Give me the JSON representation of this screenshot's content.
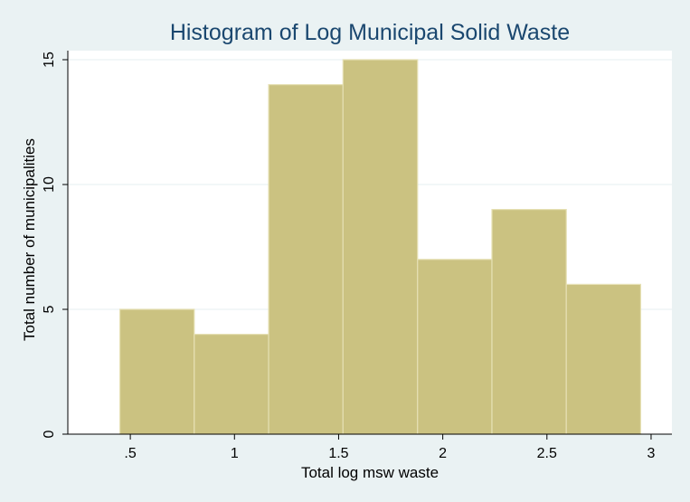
{
  "chart_data": {
    "type": "bar",
    "title": "Histogram of Log Municipal Solid Waste",
    "xlabel": "Total log msw waste",
    "ylabel": "Total number of municipalities",
    "bins": [
      {
        "start": 0.45,
        "end": 0.807,
        "value": 5
      },
      {
        "start": 0.807,
        "end": 1.164,
        "value": 4
      },
      {
        "start": 1.164,
        "end": 1.521,
        "value": 14
      },
      {
        "start": 1.521,
        "end": 1.879,
        "value": 15
      },
      {
        "start": 1.879,
        "end": 2.236,
        "value": 7
      },
      {
        "start": 2.236,
        "end": 2.593,
        "value": 9
      },
      {
        "start": 2.593,
        "end": 2.95,
        "value": 6
      }
    ],
    "xlim": [
      0.2,
      3.1
    ],
    "ylim": [
      0,
      15
    ],
    "xticks": [
      0.5,
      1,
      1.5,
      2,
      2.5,
      3
    ],
    "xtick_labels": [
      ".5",
      "1",
      "1.5",
      "2",
      "2.5",
      "3"
    ],
    "yticks": [
      0,
      5,
      10,
      15
    ],
    "ytick_labels": [
      "0",
      "5",
      "10",
      "15"
    ],
    "grid": true,
    "colors": {
      "bar_fill": "#cbc281",
      "bar_edge": "#e6e0b4",
      "background": "#eaf2f3",
      "plot_background": "#ffffff",
      "title": "#1a476f",
      "grid": "#eaf2f3"
    }
  }
}
